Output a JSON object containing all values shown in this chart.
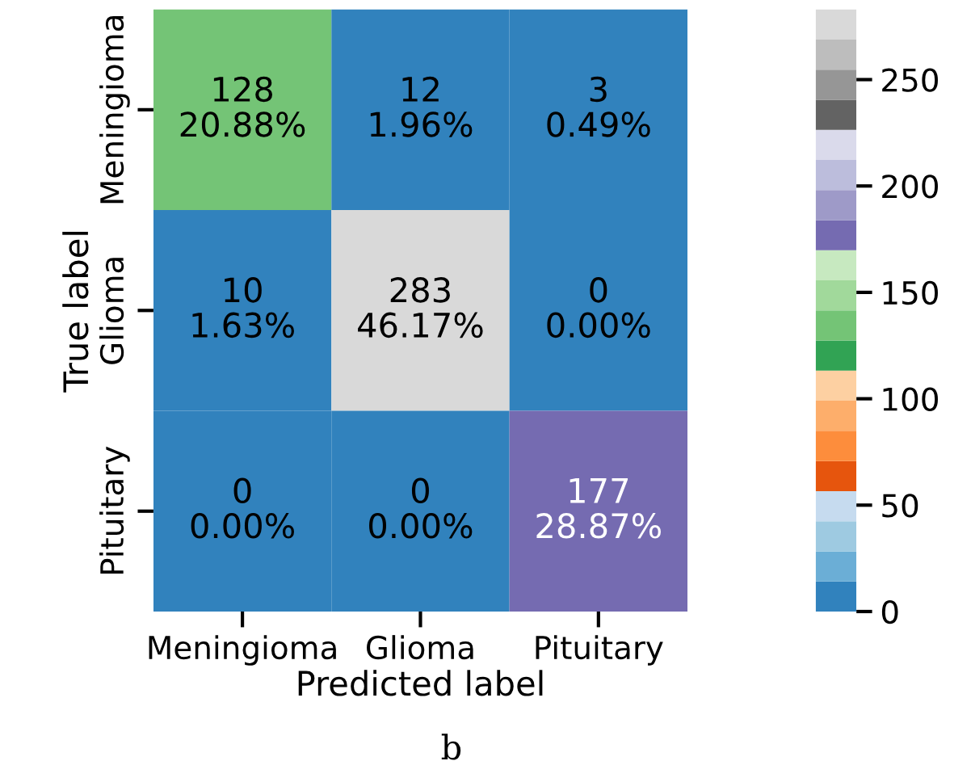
{
  "chart_data": {
    "type": "heatmap",
    "xlabel": "Predicted label",
    "ylabel": "True label",
    "categories": [
      "Meningioma",
      "Glioma",
      "Pituitary"
    ],
    "y_categories": [
      "Meningioma",
      "Glioma",
      "Pituitary"
    ],
    "cells": [
      [
        128,
        12,
        3
      ],
      [
        10,
        283,
        0
      ],
      [
        0,
        0,
        177
      ]
    ],
    "cell_labels": [
      [
        "128\n20.88%",
        "12\n1.96%",
        "3\n0.49%"
      ],
      [
        "10\n1.63%",
        "283\n46.17%",
        "0\n0.00%"
      ],
      [
        "0\n0.00%",
        "0\n0.00%",
        "177\n28.87%"
      ]
    ],
    "clim": [
      0,
      283
    ],
    "cticks": [
      0,
      50,
      100,
      150,
      200,
      250
    ],
    "annotations": [
      "b"
    ]
  }
}
